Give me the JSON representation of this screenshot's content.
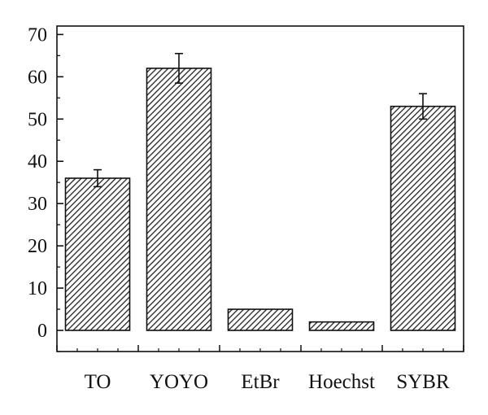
{
  "chart_data": {
    "type": "bar",
    "categories": [
      "TO",
      "YOYO",
      "EtBr",
      "Hoechst",
      "SYBR"
    ],
    "values": [
      36,
      62,
      5,
      2,
      53
    ],
    "errors": [
      2,
      3.5,
      0.2,
      0.1,
      3
    ],
    "ylim": [
      -5,
      72
    ],
    "yticks": [
      0,
      10,
      20,
      30,
      40,
      50,
      60,
      70
    ],
    "ytick_labels": [
      "0",
      "10",
      "20",
      "30",
      "40",
      "50",
      "60",
      "70"
    ],
    "title": "",
    "xlabel": "",
    "ylabel": "",
    "bar_fill": "hatched",
    "colors": {
      "bar_edge": "#111111",
      "hatch": "#222222",
      "axis": "#111111"
    }
  }
}
